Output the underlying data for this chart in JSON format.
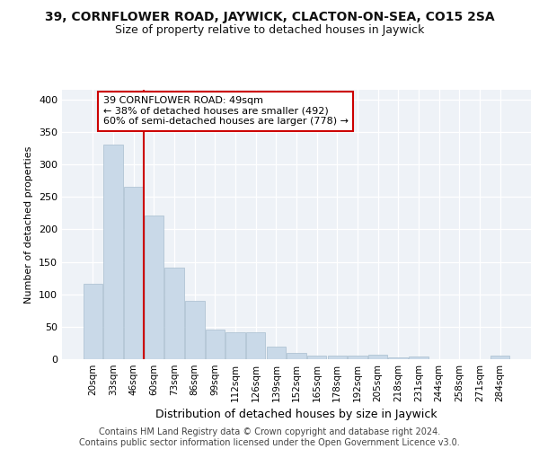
{
  "title_line1": "39, CORNFLOWER ROAD, JAYWICK, CLACTON-ON-SEA, CO15 2SA",
  "title_line2": "Size of property relative to detached houses in Jaywick",
  "xlabel": "Distribution of detached houses by size in Jaywick",
  "ylabel": "Number of detached properties",
  "categories": [
    "20sqm",
    "33sqm",
    "46sqm",
    "60sqm",
    "73sqm",
    "86sqm",
    "99sqm",
    "112sqm",
    "126sqm",
    "139sqm",
    "152sqm",
    "165sqm",
    "178sqm",
    "192sqm",
    "205sqm",
    "218sqm",
    "231sqm",
    "244sqm",
    "258sqm",
    "271sqm",
    "284sqm"
  ],
  "values": [
    116,
    330,
    266,
    222,
    141,
    90,
    45,
    42,
    42,
    19,
    9,
    6,
    6,
    6,
    7,
    3,
    4,
    0,
    0,
    0,
    5
  ],
  "bar_color": "#c9d9e8",
  "bar_edgecolor": "#a8bece",
  "annotation_text": "39 CORNFLOWER ROAD: 49sqm\n← 38% of detached houses are smaller (492)\n60% of semi-detached houses are larger (778) →",
  "annotation_box_color": "#ffffff",
  "annotation_box_edgecolor": "#cc0000",
  "vline_color": "#cc0000",
  "vline_x": 2.5,
  "ylim": [
    0,
    415
  ],
  "yticks": [
    0,
    50,
    100,
    150,
    200,
    250,
    300,
    350,
    400
  ],
  "background_color": "#eef2f7",
  "footer_text": "Contains HM Land Registry data © Crown copyright and database right 2024.\nContains public sector information licensed under the Open Government Licence v3.0.",
  "title_fontsize": 10,
  "subtitle_fontsize": 9,
  "footer_fontsize": 7,
  "ylabel_fontsize": 8,
  "xlabel_fontsize": 9,
  "tick_fontsize": 7.5,
  "ytick_fontsize": 8,
  "annotation_fontsize": 8
}
